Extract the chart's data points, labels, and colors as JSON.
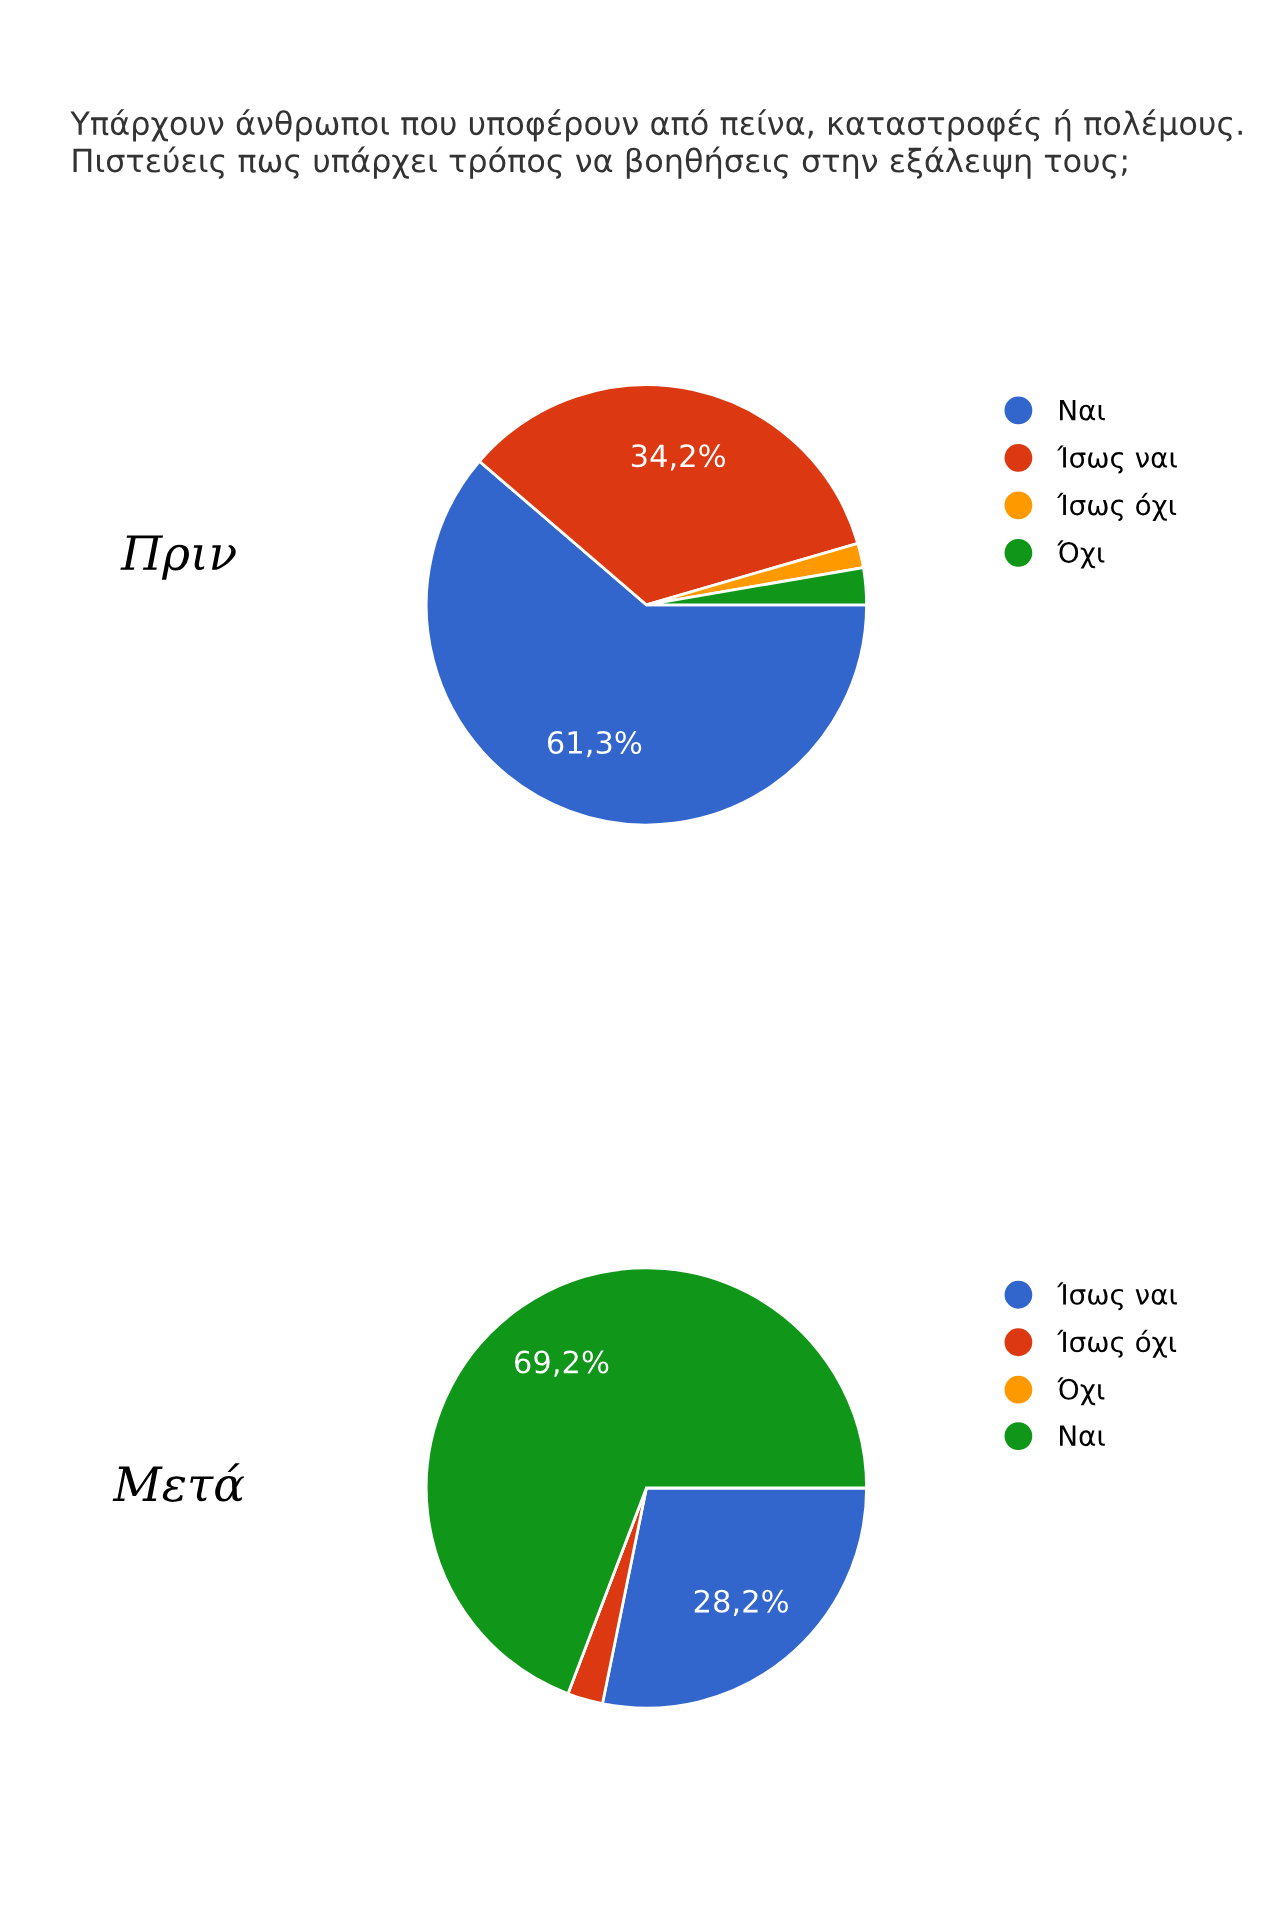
{
  "chart_data": [
    {
      "type": "pie",
      "title": "Υπάρχουν άνθρωποι που υποφέρουν από πείνα, καταστροφές ή πολέμους. Πιστεύεις πως υπάρχει τρόπος να βοηθήσεις στην εξάλειψη τους;",
      "annotations": [
        "Πριν"
      ],
      "categories": [
        "Ναι",
        "Ίσως ναι",
        "Ίσως όχι",
        "Όχι"
      ],
      "values": [
        61.3,
        34.2,
        1.8,
        2.7
      ],
      "colors": [
        "#3366cc",
        "#dc3912",
        "#ff9900",
        "#109618"
      ],
      "value_labels": [
        "61,3%",
        "34,2%",
        null,
        null
      ],
      "legend": "right"
    },
    {
      "type": "pie",
      "annotations": [
        "Μετά"
      ],
      "categories": [
        "Ίσως ναι",
        "Ίσως όχι",
        "Όχι",
        "Ναι"
      ],
      "values": [
        28.2,
        2.6,
        0,
        69.2
      ],
      "colors": [
        "#3366cc",
        "#dc3912",
        "#ff9900",
        "#109618"
      ],
      "value_labels": [
        "28,2%",
        null,
        null,
        "69,2%"
      ],
      "legend": "right"
    }
  ]
}
